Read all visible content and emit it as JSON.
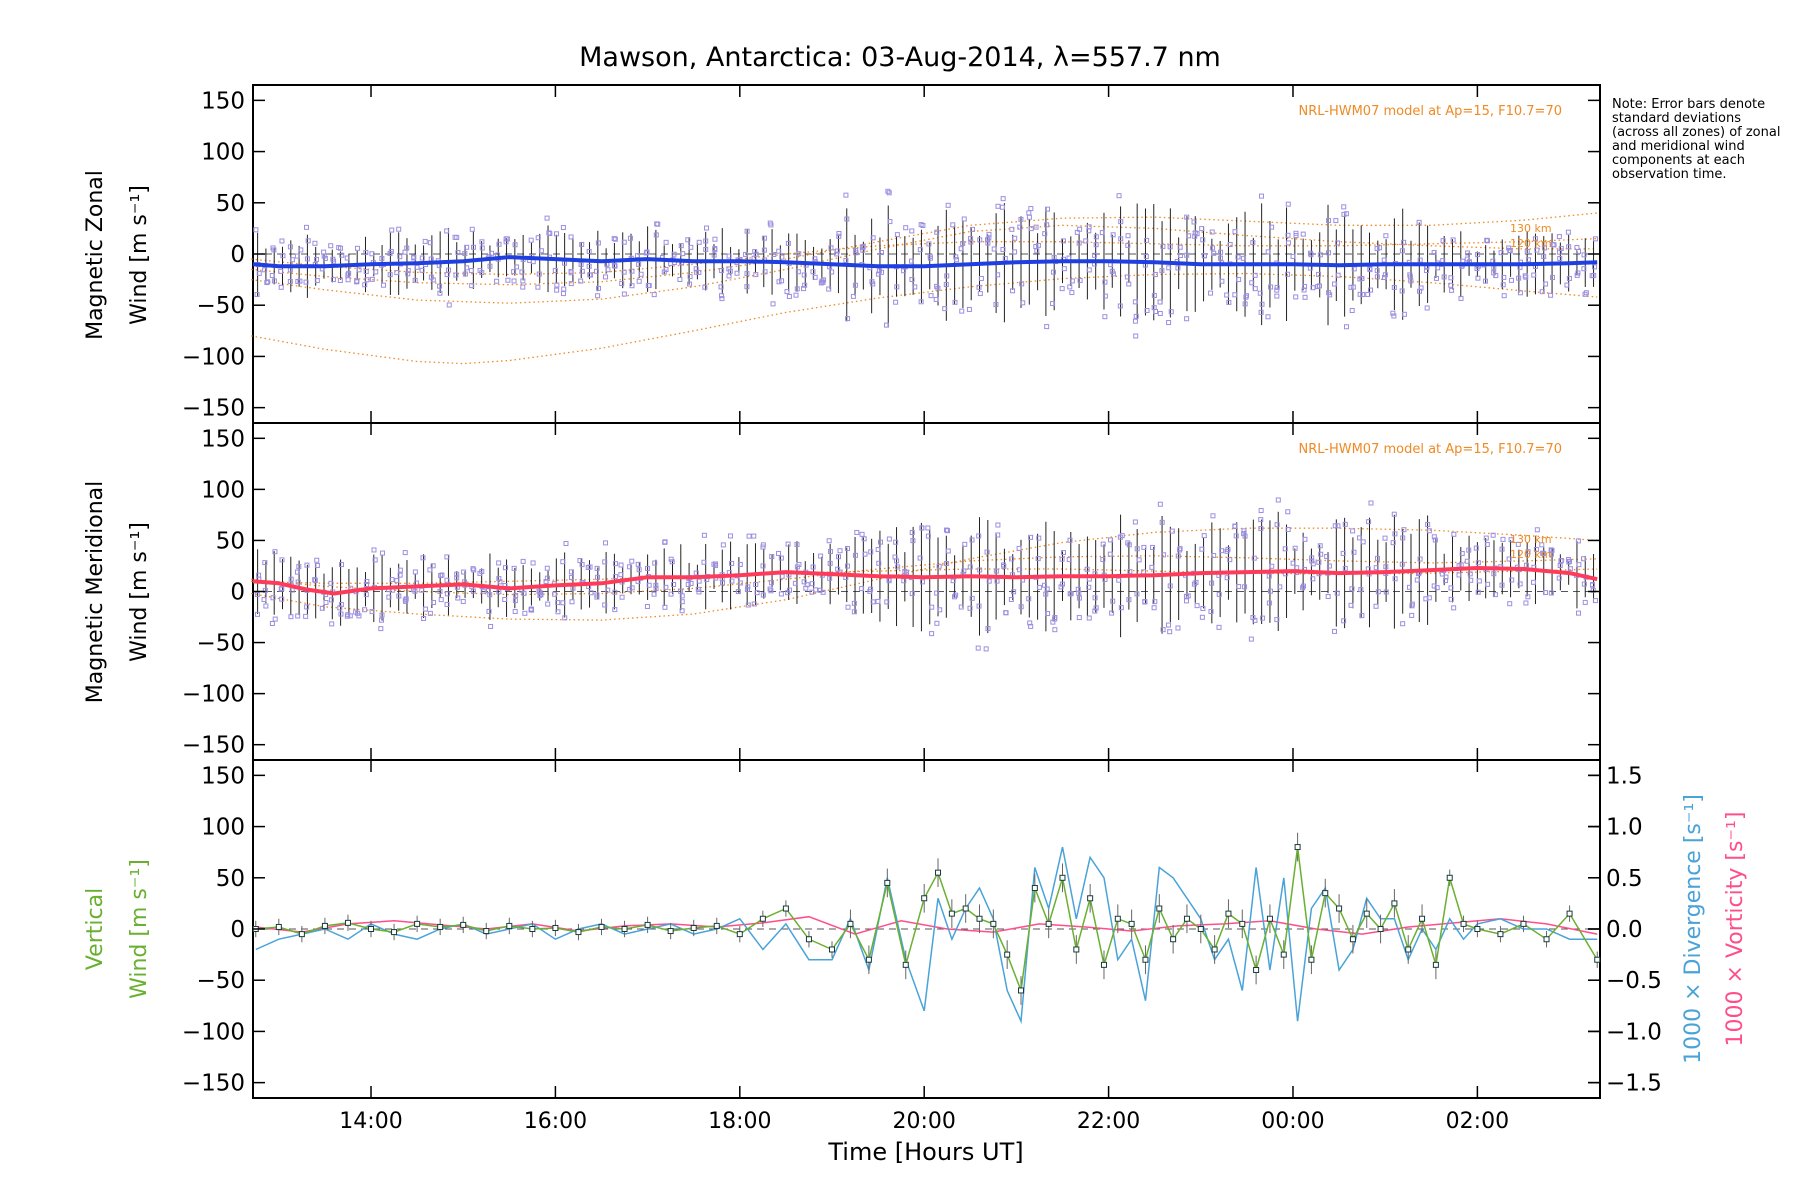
{
  "title": "Mawson, Antarctica: 03-Aug-2014, λ=557.7 nm",
  "note": "Note: Error bars denote standard deviations (across all zones) of zonal and meridional wind components at each observation time.",
  "colors": {
    "zonal_mean": "#1f3fe0",
    "meridional_mean": "#ff3b5c",
    "model": "#f08a24",
    "zone_points": "#9b8fe0",
    "error_bar": "#222222",
    "vertical": "#6ab030",
    "divergence": "#4aa3d8",
    "vorticity": "#ff4f8b"
  },
  "chart_data": [
    {
      "type": "line",
      "panel": "zonal",
      "ylabel_line1": "Magnetic Zonal",
      "ylabel_line2": "Wind [m s⁻¹]",
      "ylim": [
        -165,
        165
      ],
      "yticks": [
        150,
        100,
        50,
        0,
        -50,
        -100,
        -150
      ],
      "model_label": "NRL-HWM07 model at Ap=15, F10.7=70",
      "alt_labels": [
        "130 km",
        "120 km"
      ],
      "series": [
        {
          "role": "mean",
          "x": [
            12.72,
            13.0,
            13.5,
            14.0,
            14.5,
            15.0,
            15.5,
            16.0,
            16.5,
            17.0,
            17.5,
            18.0,
            18.5,
            19.0,
            19.5,
            20.0,
            20.5,
            21.0,
            21.5,
            22.0,
            22.5,
            23.0,
            23.5,
            24.0,
            24.5,
            25.0,
            25.5,
            26.0,
            26.5,
            27.0,
            27.3
          ],
          "y": [
            -10,
            -12,
            -12,
            -10,
            -9,
            -7,
            -3,
            -5,
            -7,
            -5,
            -7,
            -7,
            -8,
            -10,
            -12,
            -12,
            -10,
            -8,
            -7,
            -7,
            -8,
            -10,
            -10,
            -10,
            -11,
            -10,
            -10,
            -10,
            -10,
            -9,
            -8
          ]
        },
        {
          "role": "model",
          "x": [
            12.7,
            13.5,
            14.5,
            15.0,
            15.5,
            16.5,
            17.5,
            18.5,
            19.5,
            20.5,
            21.5,
            22.5,
            23.5,
            24.5,
            25.5,
            26.5,
            27.3
          ],
          "y": [
            -80,
            -93,
            -105,
            -107,
            -104,
            -92,
            -75,
            -57,
            -43,
            -32,
            -24,
            -20,
            -19,
            -22,
            -28,
            -36,
            -42
          ]
        },
        {
          "role": "model",
          "x": [
            12.7,
            13.5,
            14.5,
            15.5,
            16.5,
            17.5,
            18.5,
            19.5,
            20.5,
            21.5,
            22.5,
            23.5,
            24.5,
            25.5,
            26.5,
            27.3
          ],
          "y": [
            -25,
            -35,
            -45,
            -48,
            -44,
            -32,
            -15,
            5,
            22,
            28,
            25,
            18,
            12,
            8,
            5,
            5
          ]
        },
        {
          "role": "model",
          "x": [
            12.7,
            13.5,
            14.5,
            15.5,
            16.5,
            17.5,
            18.5,
            19.5,
            20.5,
            21.5,
            22.5,
            23.5,
            24.5,
            25.5,
            26.5,
            27.3
          ],
          "y": [
            -15,
            -22,
            -28,
            -30,
            -27,
            -18,
            -5,
            12,
            28,
            35,
            36,
            32,
            28,
            28,
            33,
            40
          ]
        },
        {
          "role": "model",
          "x": [
            12.7,
            13.5,
            14.5,
            15.5,
            16.5,
            17.5,
            18.5,
            19.5,
            20.5,
            21.5,
            22.5,
            23.5,
            24.5,
            25.5,
            26.5,
            27.3
          ],
          "y": [
            -5,
            -12,
            -18,
            -20,
            -18,
            -10,
            0,
            8,
            12,
            12,
            10,
            8,
            8,
            10,
            12,
            15
          ]
        }
      ]
    },
    {
      "type": "line",
      "panel": "meridional",
      "ylabel_line1": "Magnetic Meridional",
      "ylabel_line2": "Wind [m s⁻¹]",
      "ylim": [
        -165,
        165
      ],
      "yticks": [
        150,
        100,
        50,
        0,
        -50,
        -100,
        -150
      ],
      "model_label": "NRL-HWM07 model at Ap=15, F10.7=70",
      "alt_labels": [
        "130 km",
        "120 km"
      ],
      "series": [
        {
          "role": "mean",
          "x": [
            12.72,
            13.0,
            13.3,
            13.6,
            14.0,
            14.5,
            15.0,
            15.5,
            16.0,
            16.5,
            17.0,
            17.5,
            18.0,
            18.5,
            19.0,
            19.5,
            20.0,
            20.5,
            21.0,
            21.5,
            22.0,
            22.5,
            23.0,
            23.5,
            24.0,
            24.5,
            25.0,
            25.5,
            26.0,
            26.5,
            27.0,
            27.3
          ],
          "y": [
            10,
            8,
            2,
            -2,
            3,
            5,
            7,
            3,
            6,
            8,
            14,
            14,
            16,
            19,
            17,
            15,
            14,
            15,
            14,
            15,
            15,
            16,
            18,
            19,
            20,
            18,
            19,
            21,
            23,
            22,
            18,
            12
          ]
        },
        {
          "role": "model",
          "x": [
            12.7,
            13.5,
            14.5,
            15.5,
            16.5,
            17.5,
            18.5,
            19.5,
            20.5,
            21.5,
            22.5,
            23.5,
            24.5,
            25.5,
            26.5,
            27.3
          ],
          "y": [
            -2,
            -15,
            -22,
            -27,
            -28,
            -22,
            -8,
            12,
            32,
            48,
            58,
            62,
            62,
            60,
            55,
            50
          ]
        },
        {
          "role": "model",
          "x": [
            12.7,
            13.5,
            14.5,
            15.5,
            16.5,
            17.5,
            18.5,
            19.5,
            20.5,
            21.5,
            22.5,
            23.5,
            24.5,
            25.5,
            26.5,
            27.3
          ],
          "y": [
            12,
            5,
            0,
            -3,
            -2,
            3,
            12,
            22,
            30,
            34,
            35,
            33,
            30,
            28,
            30,
            32
          ]
        },
        {
          "role": "model",
          "x": [
            12.7,
            13.5,
            14.5,
            15.5,
            16.5,
            17.5,
            18.5,
            19.5,
            20.5,
            21.5,
            22.5,
            23.5,
            24.5,
            25.5,
            26.5,
            27.3
          ],
          "y": [
            10,
            8,
            8,
            10,
            12,
            15,
            18,
            20,
            22,
            22,
            20,
            18,
            17,
            18,
            20,
            22
          ]
        }
      ]
    },
    {
      "type": "line",
      "panel": "vertical",
      "ylabel_line1": "Vertical",
      "ylabel_line2": "Wind [m s⁻¹]",
      "y2label_a": "1000 × Divergence [s⁻¹]",
      "y2label_b": "1000 × Vorticity [s⁻¹]",
      "ylim": [
        -165,
        165
      ],
      "yticks": [
        150,
        100,
        50,
        0,
        -50,
        -100,
        -150
      ],
      "y2lim": [
        -1.65,
        1.65
      ],
      "y2ticks": [
        "1.5",
        "1.0",
        "0.5",
        "0.0",
        "−0.5",
        "−1.0",
        "−1.5"
      ],
      "xlim": [
        12.72,
        27.33
      ],
      "xticks": [
        "14:00",
        "16:00",
        "18:00",
        "20:00",
        "22:00",
        "00:00",
        "02:00"
      ],
      "xtick_values": [
        14,
        16,
        18,
        20,
        22,
        24,
        26
      ],
      "xlabel": "Time [Hours UT]",
      "series": [
        {
          "role": "vertical",
          "x": [
            12.75,
            13.0,
            13.25,
            13.5,
            13.75,
            14.0,
            14.25,
            14.5,
            14.75,
            15.0,
            15.25,
            15.5,
            15.75,
            16.0,
            16.25,
            16.5,
            16.75,
            17.0,
            17.25,
            17.5,
            17.75,
            18.0,
            18.25,
            18.5,
            18.75,
            19.0,
            19.2,
            19.4,
            19.6,
            19.8,
            20.0,
            20.15,
            20.3,
            20.45,
            20.6,
            20.75,
            20.9,
            21.05,
            21.2,
            21.35,
            21.5,
            21.65,
            21.8,
            21.95,
            22.1,
            22.25,
            22.4,
            22.55,
            22.7,
            22.85,
            23.0,
            23.15,
            23.3,
            23.45,
            23.6,
            23.75,
            23.9,
            24.05,
            24.2,
            24.35,
            24.5,
            24.65,
            24.8,
            24.95,
            25.1,
            25.25,
            25.4,
            25.55,
            25.7,
            25.85,
            26.0,
            26.25,
            26.5,
            26.75,
            27.0,
            27.3
          ],
          "y": [
            0,
            2,
            -5,
            3,
            6,
            0,
            -3,
            5,
            2,
            4,
            -2,
            3,
            0,
            1,
            -3,
            2,
            0,
            4,
            -2,
            1,
            3,
            -5,
            10,
            20,
            -10,
            -20,
            5,
            -30,
            45,
            -35,
            30,
            55,
            15,
            20,
            10,
            5,
            -25,
            -60,
            40,
            5,
            50,
            -20,
            30,
            -35,
            10,
            5,
            -30,
            20,
            -10,
            10,
            0,
            -20,
            15,
            5,
            -40,
            10,
            -25,
            80,
            -30,
            35,
            20,
            -10,
            15,
            0,
            25,
            -20,
            10,
            -35,
            50,
            5,
            0,
            -5,
            5,
            -10,
            15,
            -30
          ]
        },
        {
          "role": "divergence",
          "x": [
            12.75,
            13.0,
            13.25,
            13.5,
            13.75,
            14.0,
            14.25,
            14.5,
            14.75,
            15.0,
            15.25,
            15.5,
            15.75,
            16.0,
            16.25,
            16.5,
            16.75,
            17.0,
            17.25,
            17.5,
            17.75,
            18.0,
            18.25,
            18.5,
            18.75,
            19.0,
            19.2,
            19.4,
            19.6,
            19.8,
            20.0,
            20.15,
            20.3,
            20.45,
            20.6,
            20.75,
            20.9,
            21.05,
            21.2,
            21.35,
            21.5,
            21.65,
            21.8,
            21.95,
            22.1,
            22.25,
            22.4,
            22.55,
            22.7,
            22.85,
            23.0,
            23.15,
            23.3,
            23.45,
            23.6,
            23.75,
            23.9,
            24.05,
            24.2,
            24.35,
            24.5,
            24.65,
            24.8,
            24.95,
            25.1,
            25.25,
            25.4,
            25.55,
            25.7,
            25.85,
            26.0,
            26.25,
            26.5,
            26.75,
            27.0,
            27.3
          ],
          "y": [
            -0.2,
            -0.1,
            -0.05,
            0.0,
            -0.1,
            0.05,
            -0.05,
            -0.1,
            0.0,
            0.05,
            -0.05,
            0.0,
            0.05,
            -0.1,
            0.0,
            0.05,
            -0.05,
            0.0,
            0.05,
            -0.05,
            0.0,
            0.1,
            -0.2,
            0.05,
            -0.3,
            -0.3,
            0.1,
            -0.4,
            0.5,
            -0.3,
            -0.8,
            0.3,
            -0.1,
            0.2,
            0.4,
            0.1,
            -0.6,
            -0.9,
            0.6,
            0.2,
            0.8,
            0.1,
            0.7,
            0.5,
            -0.3,
            -0.1,
            -0.7,
            0.6,
            0.5,
            0.3,
            0.1,
            -0.3,
            -0.1,
            -0.6,
            0.6,
            -0.4,
            0.5,
            -0.9,
            0.2,
            0.4,
            -0.4,
            -0.2,
            0.3,
            0.1,
            0.1,
            -0.3,
            0.0,
            -0.2,
            0.1,
            -0.1,
            0.05,
            0.1,
            0.0,
            0.0,
            -0.1,
            -0.1
          ]
        },
        {
          "role": "vorticity",
          "x": [
            12.75,
            13.25,
            13.75,
            14.25,
            14.75,
            15.25,
            15.75,
            16.25,
            16.75,
            17.25,
            17.75,
            18.25,
            18.75,
            19.25,
            19.75,
            20.25,
            20.75,
            21.25,
            21.75,
            22.25,
            22.75,
            23.25,
            23.75,
            24.25,
            24.75,
            25.25,
            25.75,
            26.25,
            26.75,
            27.3
          ],
          "y": [
            0.02,
            -0.03,
            0.05,
            0.08,
            0.04,
            0.0,
            0.05,
            -0.02,
            0.03,
            0.05,
            0.02,
            0.06,
            0.12,
            -0.05,
            0.08,
            0.0,
            -0.03,
            0.05,
            0.02,
            -0.02,
            0.03,
            0.05,
            0.08,
            0.0,
            -0.05,
            0.02,
            0.06,
            0.1,
            0.05,
            -0.05
          ]
        }
      ]
    }
  ]
}
